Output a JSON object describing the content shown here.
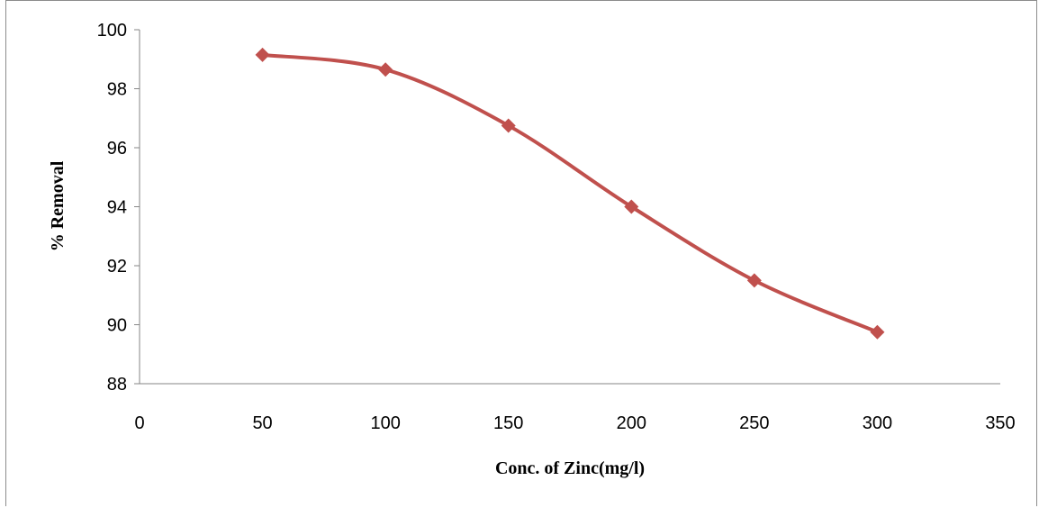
{
  "chart_data": {
    "type": "line",
    "xlabel": "Conc. of Zinc(mg/l)",
    "ylabel": "% Removal",
    "xlim": [
      0,
      350
    ],
    "ylim": [
      88,
      100
    ],
    "xticks": [
      0,
      50,
      100,
      150,
      200,
      250,
      300,
      350
    ],
    "yticks": [
      88,
      90,
      92,
      94,
      96,
      98,
      100
    ],
    "grid": false,
    "legend": "none",
    "series": [
      {
        "color": "#c0504d",
        "marker": "diamond",
        "smooth": true,
        "x": [
          50,
          100,
          150,
          200,
          250,
          300
        ],
        "y": [
          99.15,
          98.65,
          96.75,
          94.0,
          91.5,
          89.75
        ]
      }
    ]
  }
}
